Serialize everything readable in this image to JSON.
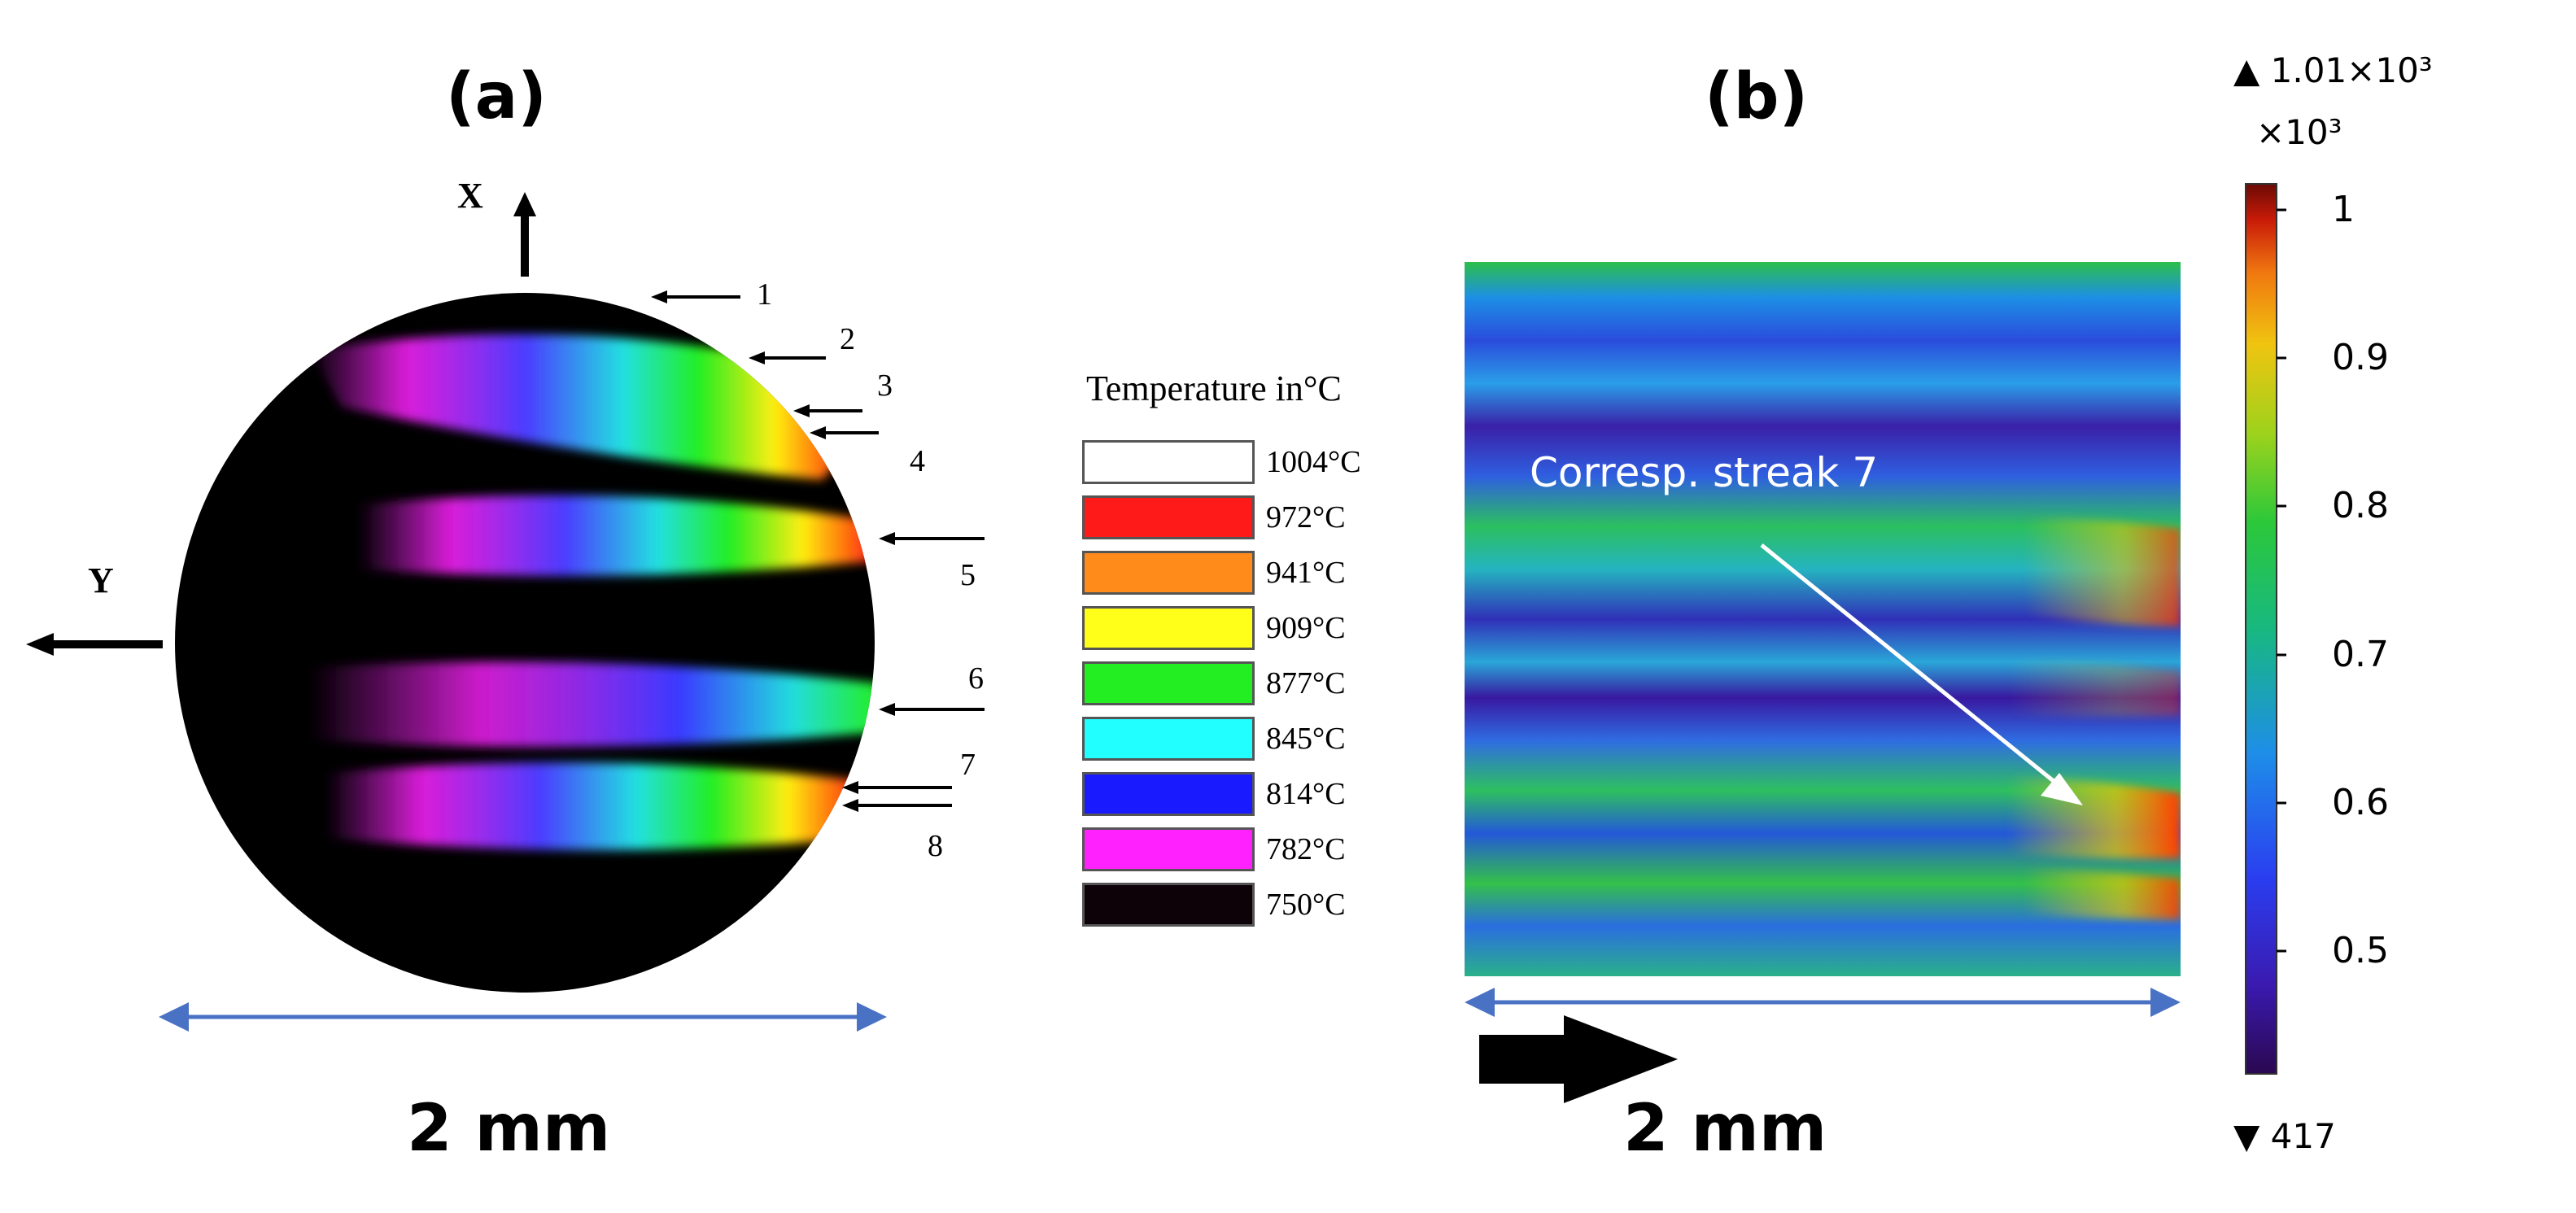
{
  "panel_a": {
    "label": "(a)",
    "axis_x": "X",
    "axis_y": "Y",
    "streaks": [
      "1",
      "2",
      "3",
      "4",
      "5",
      "6",
      "7",
      "8"
    ],
    "scale_bar": "2 mm"
  },
  "legend": {
    "title": "Temperature in°C",
    "entries": [
      {
        "label": "1004°C",
        "color": "#ffffff"
      },
      {
        "label": "972°C",
        "color": "#ff1a1a"
      },
      {
        "label": "941°C",
        "color": "#ff8c1a"
      },
      {
        "label": "909°C",
        "color": "#ffff1a"
      },
      {
        "label": "877°C",
        "color": "#22ee22"
      },
      {
        "label": "845°C",
        "color": "#22ffff"
      },
      {
        "label": "814°C",
        "color": "#1a1aff"
      },
      {
        "label": "782°C",
        "color": "#ff22ff"
      },
      {
        "label": "750°C",
        "color": "#0d0208"
      }
    ]
  },
  "panel_b": {
    "label": "(b)",
    "annotation": "Corresp. streak 7",
    "scale_bar": "2 mm"
  },
  "colorbar": {
    "max_label": "▲ 1.01×10³",
    "multiplier": "×10³",
    "ticks": [
      "1",
      "0.9",
      "0.8",
      "0.7",
      "0.6",
      "0.5"
    ],
    "min_label": "▼ 417"
  }
}
